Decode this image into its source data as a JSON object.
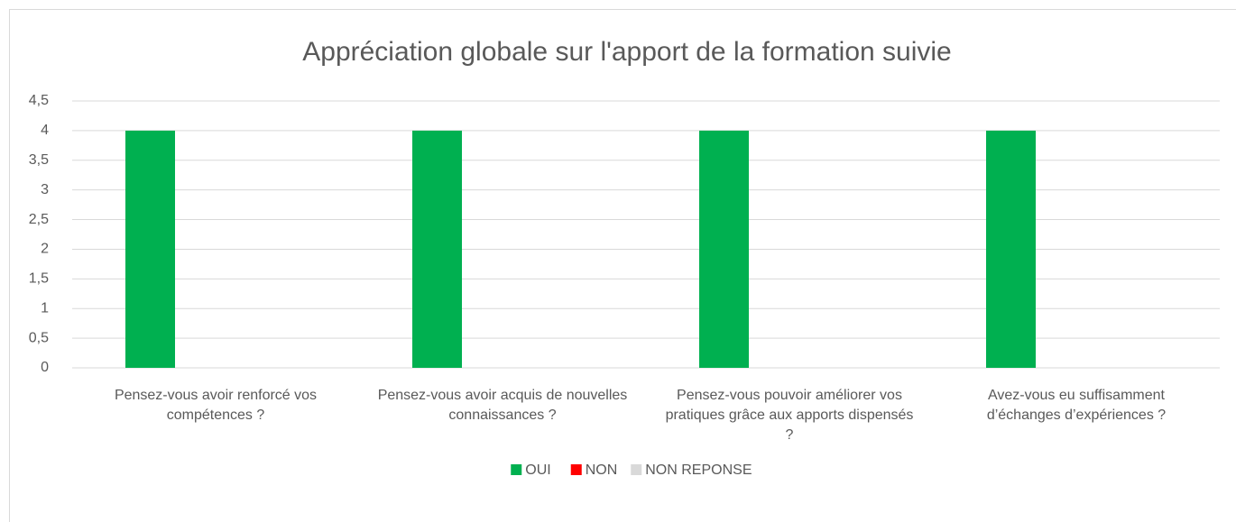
{
  "chart_data": {
    "type": "bar",
    "title": "Appréciation globale sur l'apport de la formation suivie",
    "categories": [
      "Pensez-vous avoir renforcé vos compétences ?",
      "Pensez-vous avoir acquis de nouvelles connaissances ?",
      "Pensez-vous pouvoir améliorer vos pratiques grâce aux apports dispensés ?",
      "Avez-vous eu suffisamment d’échanges d’expériences ?"
    ],
    "series": [
      {
        "name": "OUI",
        "color": "#00b050",
        "values": [
          4,
          4,
          4,
          4
        ]
      },
      {
        "name": "NON",
        "color": "#ff0000",
        "values": [
          0,
          0,
          0,
          0
        ]
      },
      {
        "name": "NON REPONSE",
        "color": "#d9d9d9",
        "values": [
          0,
          0,
          0,
          0
        ]
      }
    ],
    "ylim": [
      0,
      4.5
    ],
    "yticks": [
      0,
      {
        "value": 0.5,
        "label": "0,5"
      },
      1,
      {
        "value": 1.5,
        "label": "1,5"
      },
      2,
      {
        "value": 2.5,
        "label": "2,5"
      },
      3,
      {
        "value": 3.5,
        "label": "3,5"
      },
      4,
      {
        "value": 4.5,
        "label": "4,5"
      }
    ],
    "grid": true,
    "legend": "bottom"
  }
}
